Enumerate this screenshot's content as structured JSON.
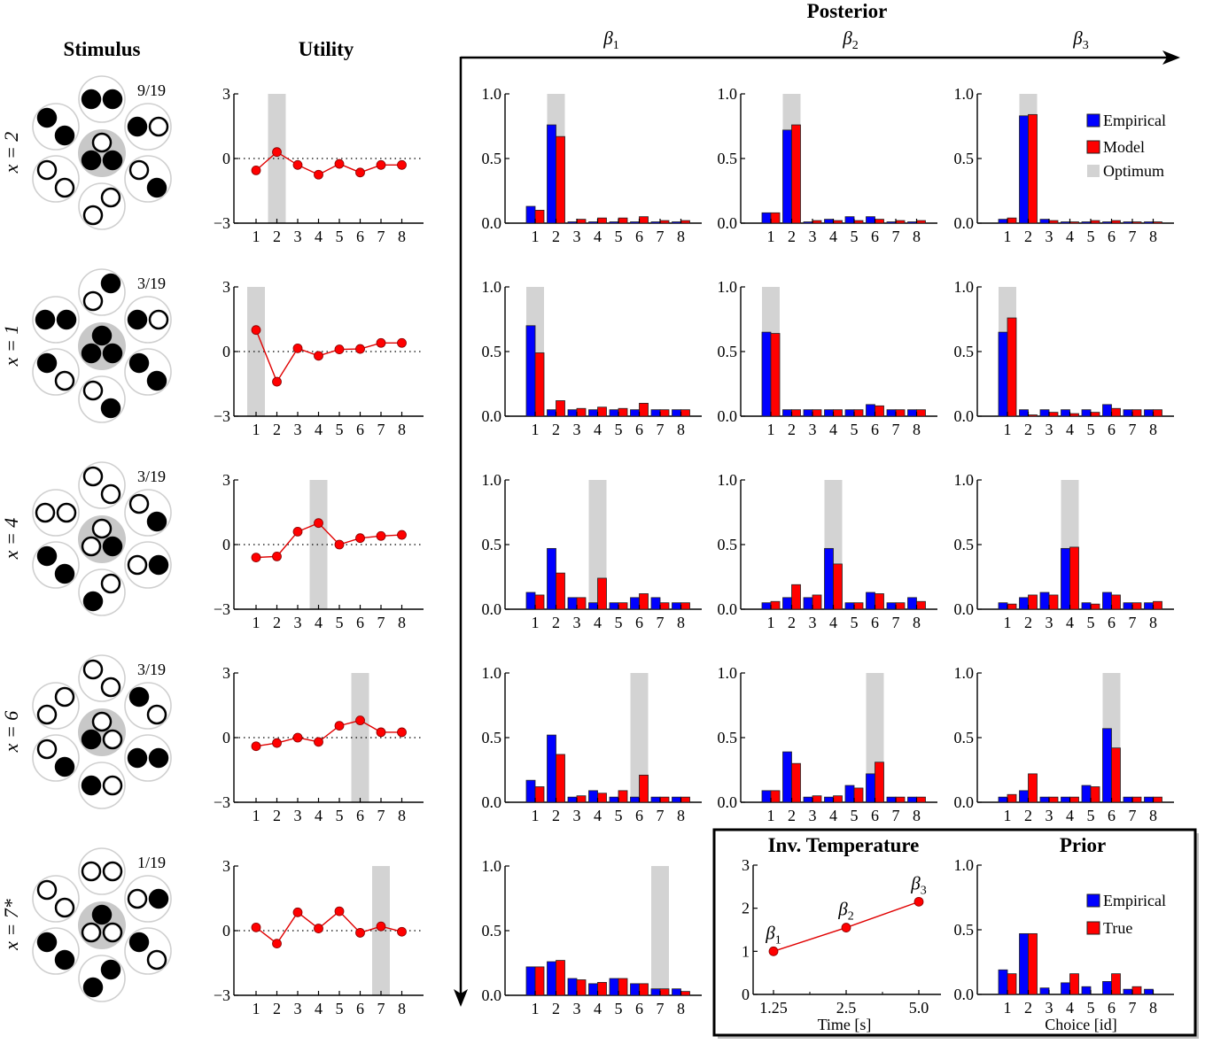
{
  "titles": {
    "stimulus": "Stimulus",
    "utility": "Utility",
    "posterior": "Posterior",
    "beta_labels": [
      {
        "sym": "β",
        "sub": "1"
      },
      {
        "sym": "β",
        "sub": "2"
      },
      {
        "sym": "β",
        "sub": "3"
      }
    ]
  },
  "colors": {
    "empirical": "#0000ff",
    "model": "#ff0000",
    "optimum": "#d3d3d3",
    "utility_line": "#e00000",
    "stimulus_center": "#c8c8c8"
  },
  "legend": {
    "empirical": "Empirical",
    "model": "Model",
    "optimum": "Optimum"
  },
  "rows": [
    {
      "label": "x = 2",
      "fraction": "9/19",
      "optimum": 2,
      "stimulus": {
        "center": {
          "top": "W",
          "bottom": [
            "B",
            "B"
          ]
        },
        "satellites": [
          {
            "pos": "top",
            "arrangement": "horizontal",
            "dots": [
              "B",
              "B"
            ]
          },
          {
            "pos": "upper-right",
            "arrangement": "horizontal",
            "dots": [
              "B",
              "W"
            ]
          },
          {
            "pos": "lower-right",
            "arrangement": "diagonal",
            "dots": [
              "W",
              "B"
            ]
          },
          {
            "pos": "bottom",
            "arrangement": "anti-diagonal",
            "dots": [
              "W",
              "W"
            ]
          },
          {
            "pos": "lower-left",
            "arrangement": "diagonal",
            "dots": [
              "W",
              "W"
            ]
          },
          {
            "pos": "upper-left",
            "arrangement": "diagonal",
            "dots": [
              "B",
              "B"
            ]
          }
        ]
      }
    },
    {
      "label": "x = 1",
      "fraction": "3/19",
      "optimum": 1,
      "stimulus": {
        "center": {
          "top": "B",
          "bottom": [
            "B",
            "B"
          ]
        },
        "satellites": [
          {
            "pos": "top",
            "arrangement": "anti-diagonal",
            "dots": [
              "B",
              "W"
            ]
          },
          {
            "pos": "upper-right",
            "arrangement": "horizontal",
            "dots": [
              "B",
              "W"
            ]
          },
          {
            "pos": "lower-right",
            "arrangement": "diagonal",
            "dots": [
              "B",
              "B"
            ]
          },
          {
            "pos": "bottom",
            "arrangement": "diagonal",
            "dots": [
              "W",
              "B"
            ]
          },
          {
            "pos": "lower-left",
            "arrangement": "diagonal",
            "dots": [
              "B",
              "W"
            ]
          },
          {
            "pos": "upper-left",
            "arrangement": "horizontal",
            "dots": [
              "B",
              "B"
            ]
          }
        ]
      }
    },
    {
      "label": "x = 4",
      "fraction": "3/19",
      "optimum": 4,
      "stimulus": {
        "center": {
          "top": "W",
          "bottom": [
            "W",
            "B"
          ]
        },
        "satellites": [
          {
            "pos": "top",
            "arrangement": "diagonal",
            "dots": [
              "W",
              "W"
            ]
          },
          {
            "pos": "upper-right",
            "arrangement": "diagonal",
            "dots": [
              "W",
              "B"
            ]
          },
          {
            "pos": "lower-right",
            "arrangement": "horizontal",
            "dots": [
              "W",
              "B"
            ]
          },
          {
            "pos": "bottom",
            "arrangement": "anti-diagonal",
            "dots": [
              "W",
              "B"
            ]
          },
          {
            "pos": "lower-left",
            "arrangement": "diagonal",
            "dots": [
              "B",
              "B"
            ]
          },
          {
            "pos": "upper-left",
            "arrangement": "horizontal",
            "dots": [
              "W",
              "W"
            ]
          }
        ]
      }
    },
    {
      "label": "x = 6",
      "fraction": "3/19",
      "optimum": 6,
      "stimulus": {
        "center": {
          "top": "W",
          "bottom": [
            "B",
            "W"
          ]
        },
        "satellites": [
          {
            "pos": "top",
            "arrangement": "diagonal",
            "dots": [
              "W",
              "W"
            ]
          },
          {
            "pos": "upper-right",
            "arrangement": "diagonal",
            "dots": [
              "B",
              "W"
            ]
          },
          {
            "pos": "lower-right",
            "arrangement": "horizontal",
            "dots": [
              "B",
              "B"
            ]
          },
          {
            "pos": "bottom",
            "arrangement": "horizontal",
            "dots": [
              "B",
              "W"
            ]
          },
          {
            "pos": "lower-left",
            "arrangement": "diagonal",
            "dots": [
              "W",
              "B"
            ]
          },
          {
            "pos": "upper-left",
            "arrangement": "anti-diagonal",
            "dots": [
              "W",
              "W"
            ]
          }
        ]
      }
    },
    {
      "label": "x = 7*",
      "fraction": "1/19",
      "optimum": 7,
      "stimulus": {
        "center": {
          "top": "B",
          "bottom": [
            "W",
            "W"
          ]
        },
        "satellites": [
          {
            "pos": "top",
            "arrangement": "horizontal",
            "dots": [
              "W",
              "W"
            ]
          },
          {
            "pos": "upper-right",
            "arrangement": "horizontal",
            "dots": [
              "W",
              "B"
            ]
          },
          {
            "pos": "lower-right",
            "arrangement": "diagonal",
            "dots": [
              "B",
              "W"
            ]
          },
          {
            "pos": "bottom",
            "arrangement": "anti-diagonal",
            "dots": [
              "B",
              "B"
            ]
          },
          {
            "pos": "lower-left",
            "arrangement": "diagonal",
            "dots": [
              "B",
              "B"
            ]
          },
          {
            "pos": "upper-left",
            "arrangement": "diagonal",
            "dots": [
              "W",
              "W"
            ]
          }
        ]
      }
    }
  ],
  "chart_data": {
    "utility": {
      "type": "line",
      "ylim": [
        -3,
        3
      ],
      "yticks": [
        "−3",
        "0",
        "3"
      ],
      "categories": [
        "1",
        "2",
        "3",
        "4",
        "5",
        "6",
        "7",
        "8"
      ],
      "zero_line": "dotted",
      "series": [
        [
          -0.55,
          0.3,
          -0.3,
          -0.75,
          -0.25,
          -0.65,
          -0.3,
          -0.3
        ],
        [
          1.0,
          -1.4,
          0.15,
          -0.2,
          0.1,
          0.12,
          0.4,
          0.4
        ],
        [
          -0.6,
          -0.55,
          0.6,
          1.0,
          0.0,
          0.3,
          0.4,
          0.45
        ],
        [
          -0.4,
          -0.25,
          0.0,
          -0.2,
          0.55,
          0.8,
          0.25,
          0.25
        ],
        [
          0.15,
          -0.6,
          0.85,
          0.1,
          0.9,
          -0.1,
          0.2,
          -0.05
        ]
      ]
    },
    "posterior": {
      "type": "bar",
      "ylim": [
        0,
        1
      ],
      "yticks": [
        "0.0",
        "0.5",
        "1.0"
      ],
      "categories": [
        "1",
        "2",
        "3",
        "4",
        "5",
        "6",
        "7",
        "8"
      ],
      "series_names": [
        "Empirical",
        "Model"
      ],
      "rows": [
        [
          {
            "empirical": [
              0.13,
              0.76,
              0.01,
              0.01,
              0.01,
              0.01,
              0.01,
              0.01
            ],
            "model": [
              0.1,
              0.67,
              0.03,
              0.04,
              0.04,
              0.05,
              0.02,
              0.02
            ]
          },
          {
            "empirical": [
              0.08,
              0.72,
              0.01,
              0.03,
              0.05,
              0.05,
              0.01,
              0.01
            ],
            "model": [
              0.08,
              0.76,
              0.02,
              0.02,
              0.02,
              0.03,
              0.02,
              0.02
            ]
          },
          {
            "empirical": [
              0.03,
              0.83,
              0.03,
              0.01,
              0.01,
              0.01,
              0.01,
              0.01
            ],
            "model": [
              0.04,
              0.84,
              0.02,
              0.01,
              0.02,
              0.02,
              0.01,
              0.01
            ]
          }
        ],
        [
          {
            "empirical": [
              0.7,
              0.05,
              0.05,
              0.05,
              0.05,
              0.05,
              0.05,
              0.05
            ],
            "model": [
              0.49,
              0.12,
              0.06,
              0.07,
              0.06,
              0.1,
              0.05,
              0.05
            ]
          },
          {
            "empirical": [
              0.65,
              0.05,
              0.05,
              0.05,
              0.05,
              0.09,
              0.05,
              0.05
            ],
            "model": [
              0.64,
              0.05,
              0.05,
              0.05,
              0.05,
              0.08,
              0.05,
              0.05
            ]
          },
          {
            "empirical": [
              0.65,
              0.05,
              0.05,
              0.05,
              0.05,
              0.09,
              0.05,
              0.05
            ],
            "model": [
              0.76,
              0.01,
              0.03,
              0.02,
              0.03,
              0.06,
              0.05,
              0.05
            ]
          }
        ],
        [
          {
            "empirical": [
              0.13,
              0.47,
              0.09,
              0.05,
              0.05,
              0.09,
              0.09,
              0.05
            ],
            "model": [
              0.11,
              0.28,
              0.09,
              0.24,
              0.05,
              0.12,
              0.05,
              0.05
            ]
          },
          {
            "empirical": [
              0.05,
              0.09,
              0.09,
              0.47,
              0.05,
              0.13,
              0.05,
              0.09
            ],
            "model": [
              0.06,
              0.19,
              0.11,
              0.35,
              0.05,
              0.12,
              0.05,
              0.06
            ]
          },
          {
            "empirical": [
              0.05,
              0.09,
              0.13,
              0.47,
              0.05,
              0.13,
              0.05,
              0.05
            ],
            "model": [
              0.04,
              0.11,
              0.11,
              0.48,
              0.04,
              0.11,
              0.05,
              0.06
            ]
          }
        ],
        [
          {
            "empirical": [
              0.17,
              0.52,
              0.04,
              0.09,
              0.04,
              0.04,
              0.04,
              0.04
            ],
            "model": [
              0.12,
              0.37,
              0.05,
              0.07,
              0.09,
              0.21,
              0.04,
              0.04
            ]
          },
          {
            "empirical": [
              0.09,
              0.39,
              0.04,
              0.04,
              0.13,
              0.22,
              0.04,
              0.04
            ],
            "model": [
              0.09,
              0.3,
              0.05,
              0.05,
              0.11,
              0.31,
              0.04,
              0.04
            ]
          },
          {
            "empirical": [
              0.04,
              0.09,
              0.04,
              0.04,
              0.13,
              0.57,
              0.04,
              0.04
            ],
            "model": [
              0.06,
              0.22,
              0.04,
              0.04,
              0.12,
              0.42,
              0.04,
              0.04
            ]
          }
        ],
        [
          {
            "empirical": [
              0.22,
              0.26,
              0.13,
              0.09,
              0.13,
              0.09,
              0.05,
              0.05
            ],
            "model": [
              0.22,
              0.27,
              0.12,
              0.1,
              0.13,
              0.09,
              0.05,
              0.03
            ]
          }
        ]
      ]
    },
    "inv_temperature": {
      "type": "line",
      "title": "Inv. Temperature",
      "xlabel": "Time [s]",
      "categories": [
        "1.25",
        "2.5",
        "5.0"
      ],
      "values": [
        1.0,
        1.55,
        2.15
      ],
      "point_labels": [
        {
          "sym": "β",
          "sub": "1"
        },
        {
          "sym": "β",
          "sub": "2"
        },
        {
          "sym": "β",
          "sub": "3"
        }
      ],
      "ylim": [
        0,
        3
      ],
      "yticks": [
        "0",
        "1",
        "2",
        "3"
      ]
    },
    "prior": {
      "type": "bar",
      "title": "Prior",
      "xlabel": "Choice [id]",
      "categories": [
        "1",
        "2",
        "3",
        "4",
        "5",
        "6",
        "7",
        "8"
      ],
      "ylim": [
        0,
        1
      ],
      "yticks": [
        "0.0",
        "0.5",
        "1.0"
      ],
      "series": [
        {
          "name": "Empirical",
          "values": [
            0.19,
            0.47,
            0.05,
            0.09,
            0.06,
            0.1,
            0.04,
            0.04
          ]
        },
        {
          "name": "True",
          "values": [
            0.16,
            0.47,
            0.0,
            0.16,
            0.0,
            0.16,
            0.06,
            0.0
          ]
        }
      ]
    }
  }
}
